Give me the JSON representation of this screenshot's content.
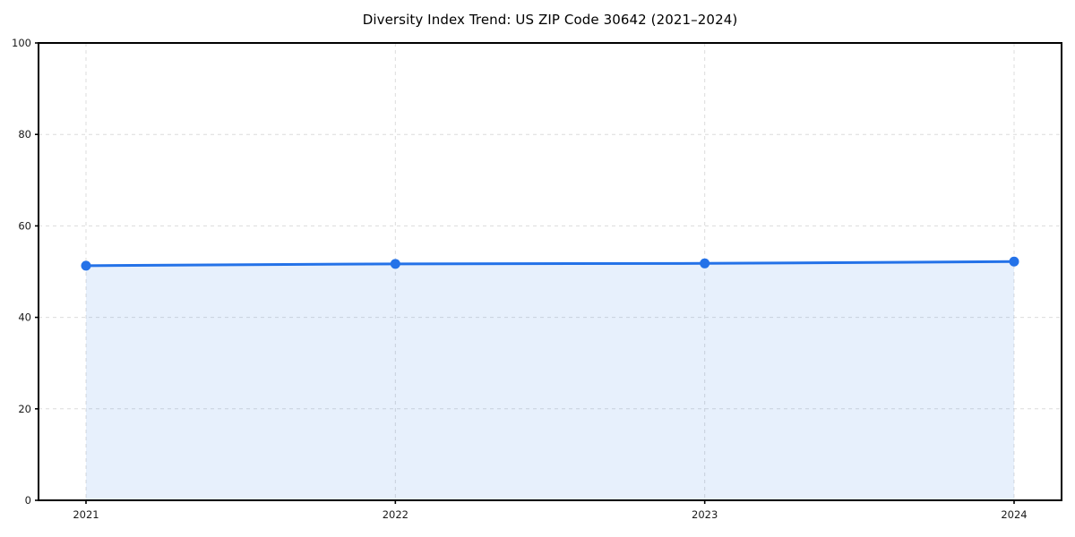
{
  "title": "Diversity Index Trend: US ZIP Code 30642 (2021–2024)",
  "chart_data": {
    "type": "line",
    "subtype": "area-filled-line-with-markers",
    "title": "Diversity Index Trend: US ZIP Code 30642 (2021–2024)",
    "categories": [
      "2021",
      "2022",
      "2023",
      "2024"
    ],
    "series": [
      {
        "name": "Diversity Index",
        "values": [
          51.3,
          51.7,
          51.8,
          52.2
        ]
      }
    ],
    "xlabel": "",
    "ylabel": "",
    "ylim": [
      0,
      100
    ],
    "yticks": [
      0,
      20,
      40,
      60,
      80,
      100
    ],
    "grid": true,
    "grid_style": "dashed",
    "legend": false,
    "colors": {
      "line": "#2472e8",
      "marker": "#2472e8",
      "fill": "rgba(36,114,232,0.11)",
      "grid": "#dcdcdc",
      "spine": "#000000",
      "tick_text": "#1a1a1a",
      "background": "#ffffff"
    }
  }
}
